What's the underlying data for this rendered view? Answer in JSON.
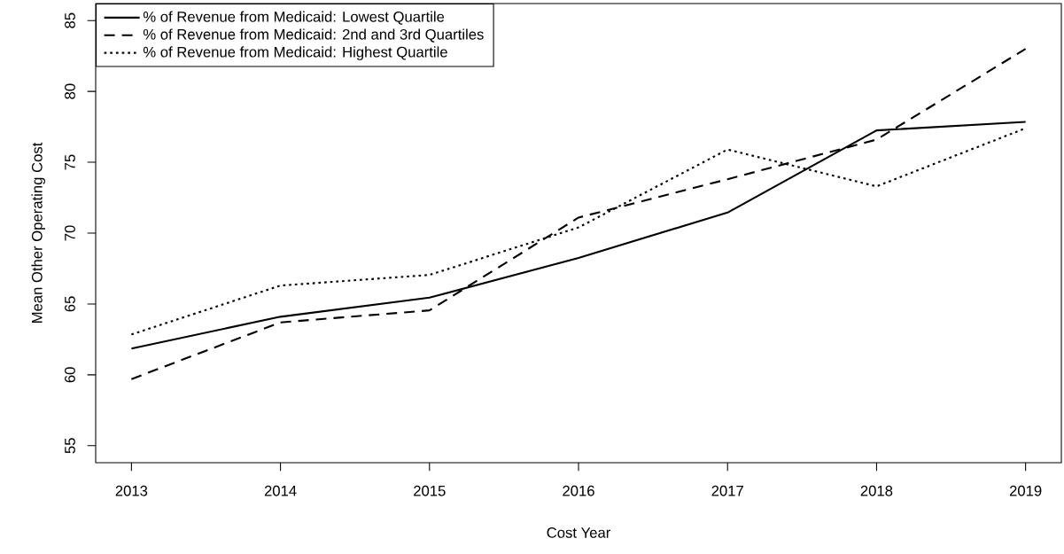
{
  "chart_data": {
    "type": "line",
    "xlabel": "Cost Year",
    "ylabel": "Mean Other Operating Cost",
    "x": [
      2013,
      2014,
      2015,
      2016,
      2017,
      2018,
      2019
    ],
    "xlim": [
      2012.76,
      2019.24
    ],
    "xticks": [
      2013,
      2014,
      2015,
      2016,
      2017,
      2018,
      2019
    ],
    "ylim": [
      53.8,
      86.2
    ],
    "yticks": [
      55,
      60,
      65,
      70,
      75,
      80,
      85
    ],
    "series": [
      {
        "name": "% of Revenue from Medicaid: Lowest Quartile",
        "color": "#000000",
        "line_style": "solid",
        "values": [
          61.85,
          64.1,
          65.45,
          68.25,
          71.45,
          77.25,
          77.85
        ]
      },
      {
        "name": "% of Revenue from Medicaid:  2nd and 3rd Quartiles",
        "color": "#000000",
        "line_style": "dashed",
        "values": [
          59.7,
          63.7,
          64.55,
          71.1,
          73.8,
          76.6,
          83.0
        ]
      },
      {
        "name": "% of Revenue from Medicaid: Highest Quartile",
        "color": "#000000",
        "line_style": "dotted",
        "values": [
          62.85,
          66.3,
          67.05,
          70.4,
          75.9,
          73.3,
          77.4
        ]
      }
    ],
    "grid": false,
    "legend": "top left",
    "marker": "none"
  }
}
